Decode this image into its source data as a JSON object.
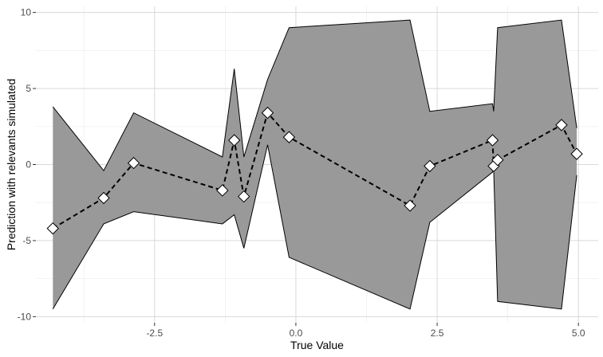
{
  "chart_data": {
    "type": "line",
    "xlabel": "True Value",
    "ylabel": "Prediction with relevants simulated",
    "xlim": [
      -4.6,
      5.35
    ],
    "ylim": [
      -10.4,
      10.4
    ],
    "x_ticks": [
      -2.5,
      0.0,
      2.5,
      5.0
    ],
    "x_tick_labels": [
      "-2.5",
      "0.0",
      "2.5",
      "5.0"
    ],
    "y_ticks": [
      -10,
      -5,
      0,
      5,
      10
    ],
    "y_tick_labels": [
      "-10",
      "-5",
      "0",
      "5",
      "10"
    ],
    "grid": true,
    "legend": "none",
    "colors": {
      "panel_background": "#ffffff",
      "grid_major": "#d9d9d9",
      "grid_minor": "#ebebeb",
      "ribbon_fill": "#999999",
      "ribbon_outline": "#000000",
      "line": "#000000",
      "marker_fill": "#ffffff",
      "marker_stroke": "#000000"
    },
    "series": [
      {
        "type": "dashed-line-with-diamonds",
        "x": [
          -4.3,
          -3.4,
          -2.87,
          -1.3,
          -1.09,
          -0.92,
          -0.5,
          -0.12,
          2.02,
          2.37,
          3.48,
          3.5,
          3.57,
          4.7,
          4.97
        ],
        "y": [
          -4.2,
          -2.2,
          0.1,
          -1.7,
          1.6,
          -2.1,
          3.4,
          1.8,
          -2.7,
          -0.1,
          1.6,
          -0.1,
          0.3,
          2.6,
          0.7
        ]
      },
      {
        "type": "ribbon",
        "x": [
          -4.3,
          -3.4,
          -2.87,
          -1.3,
          -1.09,
          -0.92,
          -0.5,
          -0.12,
          2.02,
          2.37,
          3.48,
          3.5,
          3.57,
          4.7,
          4.97
        ],
        "upper": [
          3.8,
          -0.4,
          3.4,
          0.5,
          6.3,
          0.5,
          5.6,
          9.0,
          9.5,
          3.5,
          4.0,
          3.5,
          9.0,
          9.5,
          2.4
        ],
        "lower": [
          -9.5,
          -3.9,
          -3.1,
          -3.9,
          -3.3,
          -5.5,
          1.3,
          -6.1,
          -9.5,
          -3.8,
          -0.5,
          -0.3,
          -9.0,
          -9.5,
          -0.7
        ]
      }
    ]
  }
}
